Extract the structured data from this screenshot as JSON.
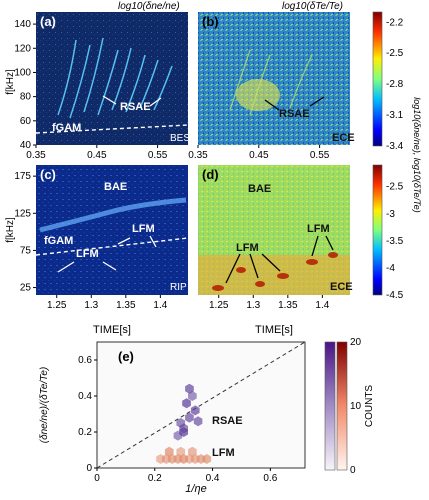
{
  "chart_data": [
    {
      "type": "heatmap",
      "panel": "(a)",
      "title": "log10(δne/ne)",
      "ylabel": "f[kHz]",
      "xlim": [
        0.35,
        0.6
      ],
      "ylim": [
        40,
        150
      ],
      "x_ticks": [
        "0.35",
        "0.45",
        "0.55"
      ],
      "y_ticks": [
        "40",
        "60",
        "80",
        "100",
        "120",
        "140"
      ],
      "annotations": [
        "RSAE",
        "fGAM",
        "BES"
      ]
    },
    {
      "type": "heatmap",
      "panel": "(b)",
      "title": "log10(δTe/Te)",
      "xlim": [
        0.35,
        0.6
      ],
      "ylim": [
        40,
        150
      ],
      "x_ticks": [
        "0.35",
        "0.45",
        "0.55"
      ],
      "annotations": [
        "RSAE",
        "ECE"
      ],
      "colorbar": {
        "label": "log10(δne/ne), log10(δTe/Te)",
        "ticks": [
          "-2.2",
          "-2.5",
          "-2.8",
          "-3.1",
          "-3.4"
        ],
        "range": [
          -3.4,
          -2.1
        ]
      }
    },
    {
      "type": "heatmap",
      "panel": "(c)",
      "ylabel": "f[kHz]",
      "xlabel": "TIME[s]",
      "xlim": [
        1.22,
        1.44
      ],
      "ylim": [
        15,
        190
      ],
      "x_ticks": [
        "1.25",
        "1.3",
        "1.35",
        "1.4"
      ],
      "y_ticks": [
        "25",
        "75",
        "125",
        "175"
      ],
      "annotations": [
        "BAE",
        "LFM",
        "LFM",
        "fGAM",
        "RIP"
      ]
    },
    {
      "type": "heatmap",
      "panel": "(d)",
      "xlabel": "TIME[s]",
      "xlim": [
        1.22,
        1.44
      ],
      "ylim": [
        15,
        190
      ],
      "x_ticks": [
        "1.25",
        "1.3",
        "1.35",
        "1.4"
      ],
      "annotations": [
        "BAE",
        "LFM",
        "LFM",
        "ECE"
      ],
      "colorbar": {
        "label": "log10(δne/ne), log10(δTe/Te)",
        "ticks": [
          "-2.5",
          "-3",
          "-3.5",
          "-4",
          "-4.5"
        ],
        "range": [
          -4.5,
          -2.1
        ]
      }
    },
    {
      "type": "scatter",
      "panel": "(e)",
      "xlabel": "1/ηe",
      "ylabel": "(δne/ne)/(δTe/Te)",
      "xlim": [
        0,
        0.72
      ],
      "ylim": [
        0,
        0.7
      ],
      "x_ticks": [
        "0",
        "0.2",
        "0.4",
        "0.6"
      ],
      "y_ticks": [
        "0",
        "0.2",
        "0.4",
        "0.6"
      ],
      "reference_line": "y = x",
      "series": [
        {
          "name": "RSAE",
          "x": [
            0.28,
            0.3,
            0.32,
            0.34,
            0.31,
            0.33,
            0.29,
            0.35,
            0.32,
            0.3
          ],
          "y": [
            0.18,
            0.22,
            0.28,
            0.32,
            0.36,
            0.4,
            0.25,
            0.26,
            0.44,
            0.2
          ]
        },
        {
          "name": "LFM",
          "x": [
            0.22,
            0.24,
            0.26,
            0.28,
            0.3,
            0.32,
            0.34,
            0.36,
            0.38,
            0.25,
            0.29,
            0.33
          ],
          "y": [
            0.05,
            0.05,
            0.05,
            0.05,
            0.05,
            0.05,
            0.05,
            0.05,
            0.05,
            0.09,
            0.09,
            0.09
          ]
        }
      ],
      "colorbar": {
        "label": "COUNTS",
        "ticks": [
          "0",
          "10",
          "20"
        ],
        "range": [
          0,
          20
        ]
      }
    }
  ]
}
